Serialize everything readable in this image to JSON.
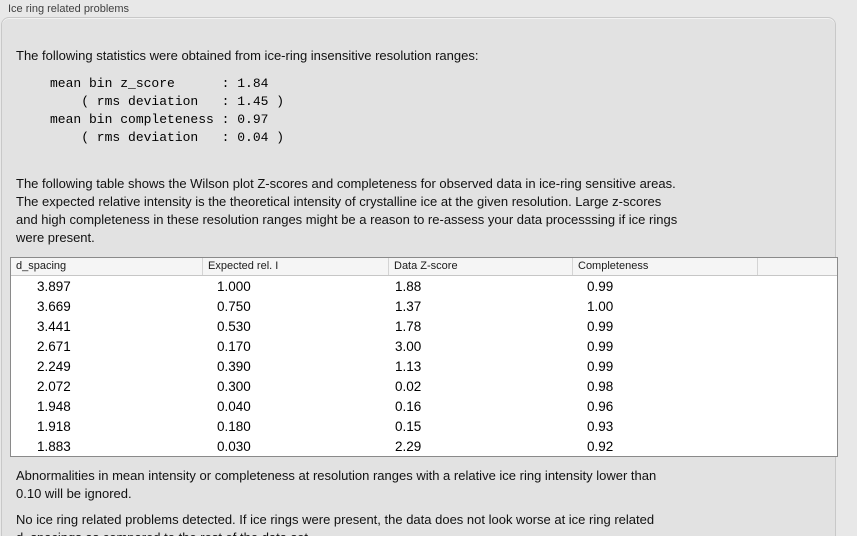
{
  "panel": {
    "title": "Ice ring related problems"
  },
  "intro_text": "The following statistics were obtained from ice-ring insensitive resolution ranges:",
  "stats": {
    "formatted_block": "mean bin z_score      : 1.84\n    ( rms deviation   : 1.45 )\nmean bin completeness : 0.97\n    ( rms deviation   : 0.04 )",
    "mean_bin_z_score": "1.84",
    "z_score_rms_deviation": "1.45",
    "mean_bin_completeness": "0.97",
    "completeness_rms_deviation": "0.04"
  },
  "table_description": "The following table shows the Wilson plot Z-scores and completeness for observed data in ice-ring sensitive areas.\nThe expected relative intensity is the theoretical intensity of crystalline ice at the given resolution. Large z-scores\nand high completeness in these resolution ranges might be a reason to re-assess your data processsing if ice rings\nwere present.",
  "table": {
    "columns": [
      "d_spacing",
      "Expected rel. I",
      "Data Z-score",
      "Completeness",
      ""
    ],
    "rows": [
      [
        "3.897",
        "1.000",
        "1.88",
        "0.99"
      ],
      [
        "3.669",
        "0.750",
        "1.37",
        "1.00"
      ],
      [
        "3.441",
        "0.530",
        "1.78",
        "0.99"
      ],
      [
        "2.671",
        "0.170",
        "3.00",
        "0.99"
      ],
      [
        "2.249",
        "0.390",
        "1.13",
        "0.99"
      ],
      [
        "2.072",
        "0.300",
        "0.02",
        "0.98"
      ],
      [
        "1.948",
        "0.040",
        "0.16",
        "0.96"
      ],
      [
        "1.918",
        "0.180",
        "0.15",
        "0.93"
      ],
      [
        "1.883",
        "0.030",
        "2.29",
        "0.92"
      ]
    ]
  },
  "ignore_note": "Abnormalities in mean intensity or completeness at resolution ranges with a relative ice ring intensity lower than\n0.10 will be ignored.",
  "conclusion": "No ice ring related problems detected. If ice rings were present, the data does not look worse at ice ring related\nd_spacings as compared to the rest of the data set.",
  "colors": {
    "page_background": "#e8e8e8",
    "panel_background": "#e2e2e2",
    "panel_border": "#c8c8c8",
    "table_border": "#8a8a8a",
    "table_header_background": "#f5f5f5",
    "text": "#111111"
  }
}
